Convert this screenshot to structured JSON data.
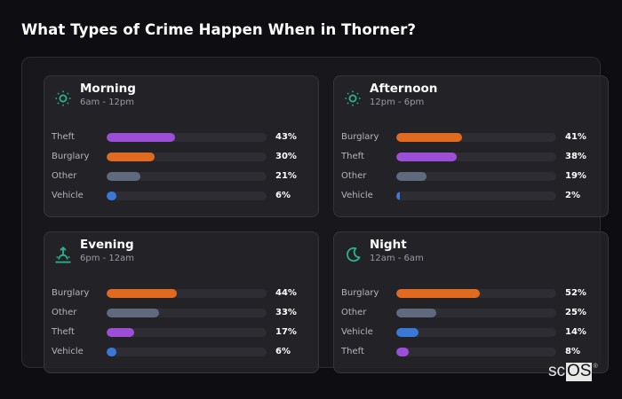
{
  "page": {
    "title": "What Types of Crime Happen When in Thorner?"
  },
  "colors": {
    "background": "#0e0e12",
    "icon_accent": "#2bb38e",
    "Theft": "#9b4fd6",
    "Burglary": "#e06a1f",
    "Other": "#5f6a7e",
    "Vehicle": "#3a78d8",
    "track": "#2d2d33"
  },
  "cards": [
    {
      "title": "Morning",
      "subtitle": "6am - 12pm",
      "icon": "sun-icon",
      "rows": [
        {
          "label": "Theft",
          "value": 43,
          "pct": "43%"
        },
        {
          "label": "Burglary",
          "value": 30,
          "pct": "30%"
        },
        {
          "label": "Other",
          "value": 21,
          "pct": "21%"
        },
        {
          "label": "Vehicle",
          "value": 6,
          "pct": "6%"
        }
      ]
    },
    {
      "title": "Afternoon",
      "subtitle": "12pm - 6pm",
      "icon": "sun-icon",
      "rows": [
        {
          "label": "Burglary",
          "value": 41,
          "pct": "41%"
        },
        {
          "label": "Theft",
          "value": 38,
          "pct": "38%"
        },
        {
          "label": "Other",
          "value": 19,
          "pct": "19%"
        },
        {
          "label": "Vehicle",
          "value": 2,
          "pct": "2%"
        }
      ]
    },
    {
      "title": "Evening",
      "subtitle": "6pm - 12am",
      "icon": "sunset-icon",
      "rows": [
        {
          "label": "Burglary",
          "value": 44,
          "pct": "44%"
        },
        {
          "label": "Other",
          "value": 33,
          "pct": "33%"
        },
        {
          "label": "Theft",
          "value": 17,
          "pct": "17%"
        },
        {
          "label": "Vehicle",
          "value": 6,
          "pct": "6%"
        }
      ]
    },
    {
      "title": "Night",
      "subtitle": "12am - 6am",
      "icon": "moon-icon",
      "rows": [
        {
          "label": "Burglary",
          "value": 52,
          "pct": "52%"
        },
        {
          "label": "Other",
          "value": 25,
          "pct": "25%"
        },
        {
          "label": "Vehicle",
          "value": 14,
          "pct": "14%"
        },
        {
          "label": "Theft",
          "value": 8,
          "pct": "8%"
        }
      ]
    }
  ],
  "logo": {
    "part1": "sc",
    "part2": "OS",
    "mark": "®"
  },
  "chart_data": {
    "type": "bar",
    "title": "What Types of Crime Happen When in Thorner?",
    "orientation": "horizontal",
    "xlabel": "",
    "ylabel": "",
    "xlim": [
      0,
      100
    ],
    "grid": false,
    "legend": "none",
    "panels": [
      {
        "title": "Morning",
        "subtitle": "6am - 12pm",
        "categories": [
          "Theft",
          "Burglary",
          "Other",
          "Vehicle"
        ],
        "values": [
          43,
          30,
          21,
          6
        ]
      },
      {
        "title": "Afternoon",
        "subtitle": "12pm - 6pm",
        "categories": [
          "Burglary",
          "Theft",
          "Other",
          "Vehicle"
        ],
        "values": [
          41,
          38,
          19,
          2
        ]
      },
      {
        "title": "Evening",
        "subtitle": "6pm - 12am",
        "categories": [
          "Burglary",
          "Other",
          "Theft",
          "Vehicle"
        ],
        "values": [
          44,
          33,
          17,
          6
        ]
      },
      {
        "title": "Night",
        "subtitle": "12am - 6am",
        "categories": [
          "Burglary",
          "Other",
          "Vehicle",
          "Theft"
        ],
        "values": [
          52,
          25,
          14,
          8
        ]
      }
    ]
  }
}
